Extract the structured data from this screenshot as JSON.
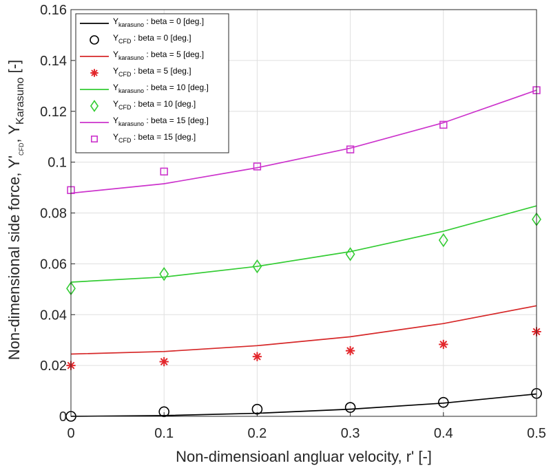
{
  "chart_data": {
    "type": "line",
    "x": [
      0,
      0.1,
      0.2,
      0.3,
      0.4,
      0.5
    ],
    "xlim": [
      0,
      0.5
    ],
    "ylim": [
      0,
      0.16
    ],
    "xticks": [
      "0",
      "0.1",
      "0.2",
      "0.3",
      "0.4",
      "0.5"
    ],
    "yticks": [
      "0",
      "0.02",
      "0.04",
      "0.06",
      "0.08",
      "0.1",
      "0.12",
      "0.14",
      "0.16"
    ],
    "xlabel": "Non-dimensioanl angluar velocity, r' [-]",
    "ylabel": {
      "main": "Non-dimensional side force, Y'",
      "sub1": "CFD",
      "mid": ", Y",
      "sub2": "Karasuno",
      "tail": " [-]"
    },
    "grid": true,
    "legend_position": "top-left",
    "series": [
      {
        "name": "Y_karasuno : beta = 0 [deg.]",
        "kind": "line",
        "color": "#000000",
        "values": [
          0.0,
          0.0003,
          0.0012,
          0.0028,
          0.0052,
          0.0088
        ]
      },
      {
        "name": "Y_CFD : beta = 0 [deg.]",
        "kind": "marker",
        "marker": "circle",
        "color": "#000000",
        "values": [
          0.0,
          0.0018,
          0.0028,
          0.0035,
          0.0055,
          0.009
        ]
      },
      {
        "name": "Y_karasuno : beta = 5 [deg.]",
        "kind": "line",
        "color": "#d62728",
        "values": [
          0.0245,
          0.0255,
          0.0278,
          0.0313,
          0.0365,
          0.0435
        ]
      },
      {
        "name": "Y_CFD : beta = 5 [deg.]",
        "kind": "marker",
        "marker": "asterisk",
        "color": "#e3262b",
        "values": [
          0.02,
          0.0215,
          0.0235,
          0.0258,
          0.0283,
          0.0333
        ]
      },
      {
        "name": "Y_karasuno : beta = 10 [deg.]",
        "kind": "line",
        "color": "#33cc33",
        "values": [
          0.0528,
          0.0548,
          0.059,
          0.0648,
          0.0728,
          0.0828
        ]
      },
      {
        "name": "Y_CFD : beta = 10 [deg.]",
        "kind": "marker",
        "marker": "diamond",
        "color": "#33cc33",
        "values": [
          0.0503,
          0.056,
          0.059,
          0.0638,
          0.0693,
          0.0775
        ]
      },
      {
        "name": "Y_karasuno : beta = 15 [deg.]",
        "kind": "line",
        "color": "#cc33cc",
        "values": [
          0.0878,
          0.0915,
          0.0978,
          0.1055,
          0.1155,
          0.1283
        ]
      },
      {
        "name": "Y_CFD : beta = 15 [deg.]",
        "kind": "marker",
        "marker": "square",
        "color": "#cc33cc",
        "values": [
          0.089,
          0.0963,
          0.0983,
          0.105,
          0.1147,
          0.1283
        ]
      }
    ],
    "legend_entries": [
      {
        "kind": "line",
        "color": "#000000",
        "main": "Y",
        "sub": "karasuno",
        "rest": " : beta = 0 [deg.]"
      },
      {
        "kind": "marker",
        "marker": "circle",
        "color": "#000000",
        "main": "Y",
        "sub": "CFD",
        "rest": " : beta = 0 [deg.]"
      },
      {
        "kind": "line",
        "color": "#d62728",
        "main": "Y",
        "sub": "karasuno",
        "rest": " : beta = 5 [deg.]"
      },
      {
        "kind": "marker",
        "marker": "asterisk",
        "color": "#e3262b",
        "main": "Y",
        "sub": "CFD",
        "rest": " : beta = 5 [deg.]"
      },
      {
        "kind": "line",
        "color": "#33cc33",
        "main": "Y",
        "sub": "karasuno",
        "rest": " : beta = 10 [deg.]"
      },
      {
        "kind": "marker",
        "marker": "diamond",
        "color": "#33cc33",
        "main": "Y",
        "sub": "CFD",
        "rest": " : beta = 10 [deg.]"
      },
      {
        "kind": "line",
        "color": "#cc33cc",
        "main": "Y",
        "sub": "karasuno",
        "rest": " : beta = 15 [deg.]"
      },
      {
        "kind": "marker",
        "marker": "square",
        "color": "#cc33cc",
        "main": "Y",
        "sub": "CFD",
        "rest": " : beta = 15 [deg.]"
      }
    ]
  }
}
